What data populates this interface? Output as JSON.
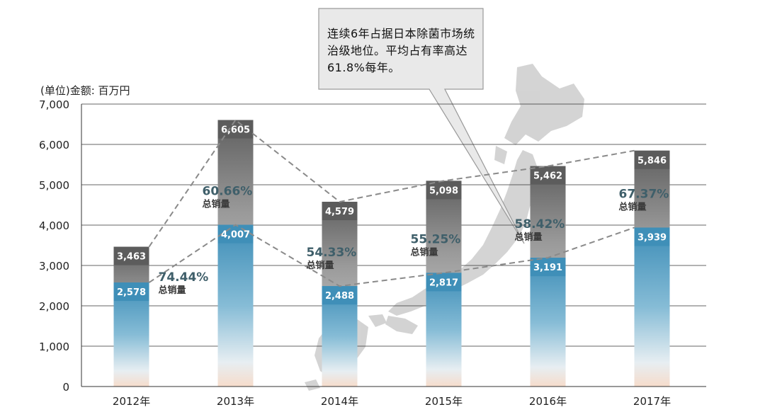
{
  "callout": {
    "text": "连续6年占据日本除菌市场统治级地位。平均占有率高达61.8%每年。"
  },
  "unit_label": "(单位)金额: 百万円",
  "share_suffix": "总销量",
  "colors": {
    "total_top": "#6b6b6b",
    "sales_top": "#3f8fb8",
    "grid": "#333333",
    "dash": "#8a8a8a",
    "map": "#cfcfcf",
    "share_text": "#3f5f6a"
  },
  "chart_data": {
    "type": "bar",
    "categories": [
      "2012年",
      "2013年",
      "2014年",
      "2015年",
      "2016年",
      "2017年"
    ],
    "series": [
      {
        "values": [
          3463,
          6605,
          4579,
          5098,
          5462,
          5846
        ]
      },
      {
        "values": [
          2578,
          4007,
          2488,
          2817,
          3191,
          3939
        ]
      }
    ],
    "labels_total": [
      "3,463",
      "6,605",
      "4,579",
      "5,098",
      "5,462",
      "5,846"
    ],
    "labels_sales": [
      "2,578",
      "4,007",
      "2,488",
      "2,817",
      "3,191",
      "3,939"
    ],
    "share": [
      "74.44%",
      "60.66%",
      "54.33%",
      "55.25%",
      "58.42%",
      "67.37%"
    ],
    "yticks": [
      0,
      1000,
      2000,
      3000,
      4000,
      5000,
      6000,
      7000
    ],
    "ytick_labels": [
      "0",
      "1,000",
      "2,000",
      "3,000",
      "4,000",
      "5,000",
      "6,000",
      "7,000"
    ],
    "ylim": [
      0,
      7000
    ],
    "grid": true
  }
}
